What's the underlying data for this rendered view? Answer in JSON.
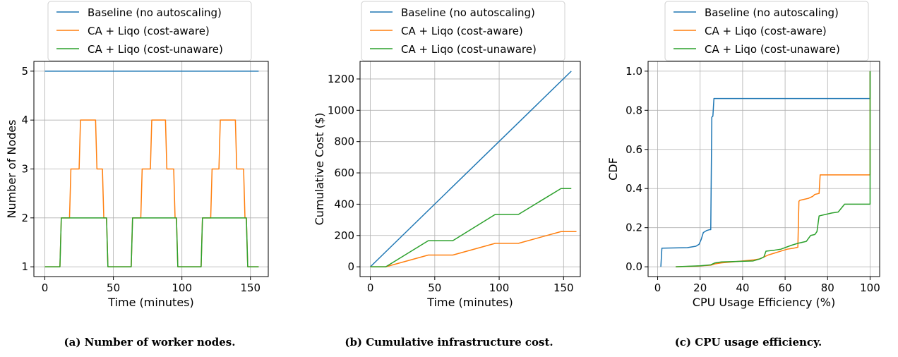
{
  "colors": {
    "baseline": "#1f77b4",
    "aware": "#ff7f0e",
    "unaware": "#2ca02c"
  },
  "legend": [
    "Baseline (no autoscaling)",
    "CA + Liqo (cost-aware)",
    "CA + Liqo (cost-unaware)"
  ],
  "captions": [
    "(a) Number of worker nodes.",
    "(b) Cumulative infrastructure cost.",
    "(c) CPU usage efficiency."
  ],
  "chart_data": [
    {
      "type": "line",
      "xlabel": "Time (minutes)",
      "ylabel": "Number of Nodes",
      "xlim": [
        -8,
        163
      ],
      "ylim": [
        0.8,
        5.2
      ],
      "xticks": [
        0,
        50,
        100,
        150
      ],
      "yticks": [
        1,
        2,
        3,
        4,
        5
      ],
      "grid": true,
      "legend_position": "top",
      "series": [
        {
          "name": "Baseline (no autoscaling)",
          "color": "#1f77b4",
          "x": [
            0,
            156
          ],
          "y": [
            5,
            5
          ]
        },
        {
          "name": "CA + Liqo (cost-aware)",
          "color": "#ff7f0e",
          "x": [
            0,
            11,
            12,
            18,
            19,
            25,
            26,
            37,
            38,
            42,
            43,
            45,
            46,
            63,
            64,
            70,
            71,
            77,
            78,
            88,
            89,
            94,
            95,
            96,
            97,
            114,
            115,
            121,
            122,
            127,
            128,
            139,
            140,
            145,
            146,
            147,
            148,
            156
          ],
          "y": [
            1,
            1,
            2,
            2,
            3,
            3,
            4,
            4,
            3,
            3,
            2,
            2,
            1,
            1,
            2,
            2,
            3,
            3,
            4,
            4,
            3,
            3,
            2,
            2,
            1,
            1,
            2,
            2,
            3,
            3,
            4,
            4,
            3,
            3,
            2,
            2,
            1,
            1
          ]
        },
        {
          "name": "CA + Liqo (cost-unaware)",
          "color": "#2ca02c",
          "x": [
            0,
            11,
            12,
            45,
            46,
            63,
            64,
            96,
            97,
            114,
            115,
            147,
            148,
            156
          ],
          "y": [
            1,
            1,
            2,
            2,
            1,
            1,
            2,
            2,
            1,
            1,
            2,
            2,
            1,
            1
          ]
        }
      ]
    },
    {
      "type": "line",
      "xlabel": "Time (minutes)",
      "ylabel": "Cumulative Cost ($)",
      "xlim": [
        -8,
        163
      ],
      "ylim": [
        -62.5,
        1312.5
      ],
      "xticks": [
        0,
        50,
        100,
        150
      ],
      "yticks": [
        0,
        200,
        400,
        600,
        800,
        1000,
        1200
      ],
      "grid": true,
      "legend_position": "top",
      "series": [
        {
          "name": "Baseline (no autoscaling)",
          "color": "#1f77b4",
          "x": [
            0,
            156
          ],
          "y": [
            0,
            1250
          ]
        },
        {
          "name": "CA + Liqo (cost-aware)",
          "color": "#ff7f0e",
          "x": [
            0,
            12,
            45,
            64,
            97,
            115,
            148,
            160
          ],
          "y": [
            0,
            0,
            75,
            75,
            150,
            150,
            225,
            225
          ]
        },
        {
          "name": "CA + Liqo (cost-unaware)",
          "color": "#2ca02c",
          "x": [
            0,
            12,
            45,
            64,
            97,
            115,
            148,
            156
          ],
          "y": [
            0,
            0,
            167,
            167,
            335,
            335,
            500,
            500
          ]
        }
      ]
    },
    {
      "type": "line",
      "xlabel": "CPU Usage Efficiency (%)",
      "ylabel": "CDF",
      "xlim": [
        -4.5,
        104.5
      ],
      "ylim": [
        -0.05,
        1.05
      ],
      "xticks": [
        0,
        20,
        40,
        60,
        80,
        100
      ],
      "yticks": [
        0.0,
        0.2,
        0.4,
        0.6,
        0.8,
        1.0
      ],
      "grid": true,
      "legend_position": "top",
      "series": [
        {
          "name": "Baseline (no autoscaling)",
          "color": "#1f77b4",
          "x": [
            1.5,
            2.0,
            10,
            14,
            18,
            19.5,
            20.5,
            21.5,
            23,
            24.5,
            25,
            25.5,
            26,
            26.5,
            100,
            100
          ],
          "y": [
            0.0,
            0.095,
            0.097,
            0.098,
            0.105,
            0.115,
            0.14,
            0.175,
            0.185,
            0.19,
            0.19,
            0.765,
            0.77,
            0.86,
            0.86,
            1.0
          ]
        },
        {
          "name": "CA + Liqo (cost-aware)",
          "color": "#ff7f0e",
          "x": [
            8.5,
            15,
            20,
            22,
            25,
            27,
            30,
            40,
            45,
            48,
            50,
            52,
            55,
            58,
            61,
            64,
            66,
            66.5,
            67,
            69,
            71,
            73,
            74,
            76,
            76.5,
            100,
            100
          ],
          "y": [
            0.0,
            0.002,
            0.004,
            0.006,
            0.008,
            0.015,
            0.02,
            0.03,
            0.035,
            0.04,
            0.05,
            0.06,
            0.07,
            0.08,
            0.09,
            0.095,
            0.1,
            0.335,
            0.34,
            0.345,
            0.35,
            0.36,
            0.37,
            0.375,
            0.47,
            0.47,
            1.0
          ]
        },
        {
          "name": "CA + Liqo (cost-unaware)",
          "color": "#2ca02c",
          "x": [
            8.5,
            20,
            25,
            27,
            30,
            45,
            48,
            50,
            51,
            55,
            58,
            63,
            66,
            70,
            72,
            74,
            75,
            76,
            78,
            80,
            82,
            85,
            88,
            100,
            100
          ],
          "y": [
            0.0,
            0.005,
            0.01,
            0.02,
            0.025,
            0.03,
            0.04,
            0.05,
            0.08,
            0.085,
            0.09,
            0.11,
            0.12,
            0.13,
            0.16,
            0.165,
            0.18,
            0.26,
            0.265,
            0.27,
            0.275,
            0.28,
            0.32,
            0.32,
            1.0
          ]
        }
      ]
    }
  ]
}
